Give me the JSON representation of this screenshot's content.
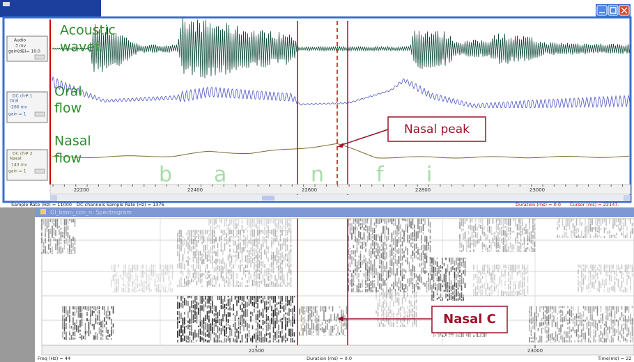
{
  "top_window": {
    "channels": [
      {
        "label": "Audio",
        "scale": "3   mv",
        "gain": "gain(dB)=   10.0"
      },
      {
        "label": "DC ch# 1",
        "name": "Oral",
        "scale": "-266  mv",
        "gain": "gain =  1"
      },
      {
        "label": "DC ch# 2",
        "name": "Nasal",
        "scale": "140  mv",
        "gain": "gain =  1"
      }
    ],
    "trace_titles": [
      [
        "Acoustic",
        "wavef."
      ],
      [
        "Oral",
        "flow"
      ],
      [
        "Nasal",
        "flow"
      ]
    ],
    "segments": [
      "b",
      "a",
      "n",
      "f",
      "i"
    ],
    "time_ticks": [
      "22200",
      "22400",
      "22600",
      "22800",
      "23000"
    ],
    "status": {
      "sample_rate": "Sample Rate (Hz) = 11000",
      "dc_rate": "DC channels Sample Rate (Hz) = 1376",
      "duration": "Duration (ms) =     0.0",
      "cursor": "Cursor (ms) = 22147."
    }
  },
  "callouts": {
    "nasal_peak": "Nasal peak",
    "nasal_c": "Nasal C"
  },
  "spectrogram": {
    "title": "GI_bann_con_n: Spectrogram",
    "time_ticks": [
      "22500",
      "23000"
    ],
    "status": {
      "freq": "Freq (Hz) =  44",
      "duration": "Duration (ms) =     0.0",
      "time": "Time(ms) =  22"
    }
  }
}
